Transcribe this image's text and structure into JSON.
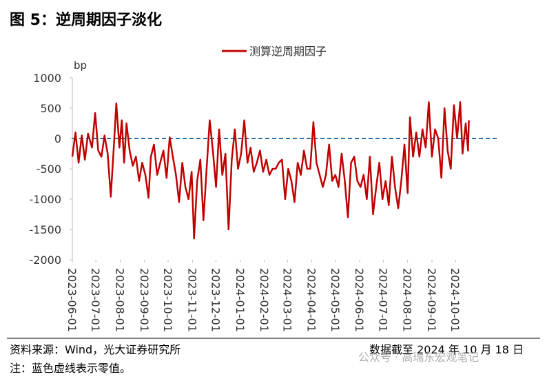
{
  "header": {
    "title": "图 5：逆周期因子淡化"
  },
  "chart_data": {
    "type": "line",
    "y_unit": "bp",
    "x": [
      "2023-06-01",
      "2023-06-05",
      "2023-06-09",
      "2023-06-13",
      "2023-06-17",
      "2023-06-21",
      "2023-06-26",
      "2023-06-30",
      "2023-07-04",
      "2023-07-08",
      "2023-07-12",
      "2023-07-16",
      "2023-07-20",
      "2023-07-24",
      "2023-07-27",
      "2023-07-31",
      "2023-08-03",
      "2023-08-06",
      "2023-08-09",
      "2023-08-13",
      "2023-08-17",
      "2023-08-21",
      "2023-08-25",
      "2023-08-29",
      "2023-09-02",
      "2023-09-06",
      "2023-09-09",
      "2023-09-13",
      "2023-09-17",
      "2023-09-21",
      "2023-09-25",
      "2023-09-29",
      "2023-10-03",
      "2023-10-07",
      "2023-10-11",
      "2023-10-15",
      "2023-10-19",
      "2023-10-23",
      "2023-10-27",
      "2023-10-31",
      "2023-11-03",
      "2023-11-07",
      "2023-11-11",
      "2023-11-15",
      "2023-11-19",
      "2023-11-23",
      "2023-11-27",
      "2023-12-01",
      "2023-12-05",
      "2023-12-09",
      "2023-12-13",
      "2023-12-17",
      "2023-12-21",
      "2023-12-25",
      "2023-12-29",
      "2024-01-02",
      "2024-01-06",
      "2024-01-10",
      "2024-01-14",
      "2024-01-18",
      "2024-01-22",
      "2024-01-26",
      "2024-01-30",
      "2024-02-03",
      "2024-02-07",
      "2024-02-11",
      "2024-02-15",
      "2024-02-19",
      "2024-02-23",
      "2024-02-27",
      "2024-03-02",
      "2024-03-06",
      "2024-03-10",
      "2024-03-14",
      "2024-03-18",
      "2024-03-22",
      "2024-03-26",
      "2024-03-30",
      "2024-04-03",
      "2024-04-07",
      "2024-04-11",
      "2024-04-15",
      "2024-04-19",
      "2024-04-23",
      "2024-04-27",
      "2024-05-01",
      "2024-05-05",
      "2024-05-09",
      "2024-05-13",
      "2024-05-17",
      "2024-05-21",
      "2024-05-25",
      "2024-05-29",
      "2024-06-02",
      "2024-06-06",
      "2024-06-10",
      "2024-06-14",
      "2024-06-18",
      "2024-06-22",
      "2024-06-26",
      "2024-06-30",
      "2024-07-04",
      "2024-07-08",
      "2024-07-12",
      "2024-07-16",
      "2024-07-20",
      "2024-07-24",
      "2024-07-28",
      "2024-08-01",
      "2024-08-04",
      "2024-08-08",
      "2024-08-12",
      "2024-08-16",
      "2024-08-20",
      "2024-08-24",
      "2024-08-28",
      "2024-09-01",
      "2024-09-05",
      "2024-09-09",
      "2024-09-13",
      "2024-09-17",
      "2024-09-21",
      "2024-09-25",
      "2024-09-29",
      "2024-10-03",
      "2024-10-07",
      "2024-10-10",
      "2024-10-14",
      "2024-10-17",
      "2024-10-18"
    ],
    "series": [
      {
        "name": "测算逆周期因子",
        "color": "#c00000",
        "values": [
          -300,
          100,
          -400,
          50,
          -350,
          80,
          -150,
          420,
          -200,
          -300,
          50,
          -250,
          -960,
          -100,
          580,
          -150,
          300,
          -400,
          250,
          -200,
          -450,
          -300,
          -700,
          -400,
          -600,
          -980,
          -300,
          -100,
          -600,
          -400,
          -200,
          -650,
          20,
          -300,
          -600,
          -1050,
          -400,
          -800,
          -1000,
          -550,
          -1650,
          -700,
          -350,
          -1350,
          -500,
          300,
          -200,
          -800,
          150,
          -600,
          -250,
          -1500,
          -350,
          150,
          -500,
          -250,
          300,
          -400,
          -150,
          -550,
          -400,
          -200,
          -550,
          -350,
          -600,
          -500,
          -500,
          -400,
          -350,
          -1000,
          -500,
          -700,
          -1050,
          -400,
          -600,
          -200,
          -500,
          -500,
          270,
          -400,
          -600,
          -800,
          -600,
          -100,
          -700,
          -600,
          -800,
          -250,
          -700,
          -1300,
          -400,
          -300,
          -700,
          -800,
          -600,
          -1000,
          -300,
          -1250,
          -800,
          -400,
          -1000,
          -700,
          -1100,
          -300,
          -800,
          -1150,
          -700,
          -100,
          -900,
          350,
          -300,
          100,
          -300,
          150,
          -150,
          600,
          -300,
          150,
          0,
          -650,
          500,
          -200,
          -500,
          550,
          0,
          600,
          -250,
          250,
          -200,
          300
        ]
      }
    ],
    "xlim": [
      "2023-06-01",
      "2024-11-26"
    ],
    "xticks": [
      "2023-06-01",
      "2023-07-01",
      "2023-08-01",
      "2023-09-01",
      "2023-10-01",
      "2023-11-01",
      "2023-12-01",
      "2024-01-01",
      "2024-02-01",
      "2024-03-01",
      "2024-04-01",
      "2024-05-01",
      "2024-06-01",
      "2024-07-01",
      "2024-08-01",
      "2024-09-01",
      "2024-10-01"
    ],
    "ylim": [
      -2000,
      1000
    ],
    "yticks": [
      -2000,
      -1500,
      -1000,
      -500,
      0,
      500,
      1000
    ],
    "zero_line": true,
    "zero_line_color": "#1f6fb2",
    "legend": "top"
  },
  "footer": {
    "source": "资料来源：Wind，光大证券研究所",
    "date_note": "数据截至 2024 年 10 月 18 日",
    "note": "注：蓝色虚线表示零值。",
    "watermark": "公众号 · 高瑞东宏观笔记"
  }
}
